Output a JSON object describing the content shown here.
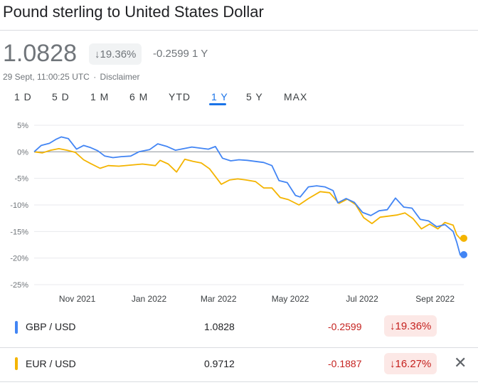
{
  "header": {
    "title": "Pound sterling to United States Dollar",
    "price": "1.0828",
    "pct_change": "19.36%",
    "abs_change": "-0.2599 1 Y",
    "timestamp": "29 Sept, 11:00:25 UTC",
    "separator": "·",
    "disclaimer": "Disclaimer"
  },
  "tabs": [
    {
      "label": "1 D",
      "active": false
    },
    {
      "label": "5 D",
      "active": false
    },
    {
      "label": "1 M",
      "active": false
    },
    {
      "label": "6 M",
      "active": false
    },
    {
      "label": "YTD",
      "active": false
    },
    {
      "label": "1 Y",
      "active": true
    },
    {
      "label": "5 Y",
      "active": false
    },
    {
      "label": "MAX",
      "active": false
    }
  ],
  "colors": {
    "gbp_series": "#4285f4",
    "eur_series": "#f4b400",
    "negative": "#c5221f",
    "active_tab": "#1a73e8"
  },
  "chart_data": {
    "type": "line",
    "title": "",
    "xlabel": "",
    "ylabel": "",
    "ylim": [
      -25,
      5
    ],
    "yticks": [
      "5%",
      "0%",
      "-5%",
      "-10%",
      "-15%",
      "-20%",
      "-25%"
    ],
    "xticks": [
      "Nov 2021",
      "Jan 2022",
      "Mar 2022",
      "May 2022",
      "Jul 2022",
      "Sept 2022"
    ],
    "x_range": [
      "2021-09-29",
      "2022-09-29"
    ],
    "baseline": 0,
    "grid": "horizontal",
    "series": [
      {
        "name": "GBP / USD",
        "color": "#4285f4",
        "points": [
          [
            "2021-09-29",
            0
          ],
          [
            "2021-10-05",
            1.2
          ],
          [
            "2021-10-12",
            1.6
          ],
          [
            "2021-10-18",
            2.4
          ],
          [
            "2021-10-22",
            2.8
          ],
          [
            "2021-10-28",
            2.5
          ],
          [
            "2021-11-04",
            0.5
          ],
          [
            "2021-11-10",
            1.2
          ],
          [
            "2021-11-16",
            0.8
          ],
          [
            "2021-11-22",
            0.2
          ],
          [
            "2021-11-28",
            -0.8
          ],
          [
            "2021-12-05",
            -1.1
          ],
          [
            "2021-12-12",
            -0.9
          ],
          [
            "2021-12-20",
            -0.8
          ],
          [
            "2021-12-27",
            0
          ],
          [
            "2022-01-05",
            0.4
          ],
          [
            "2022-01-12",
            1.5
          ],
          [
            "2022-01-20",
            1.0
          ],
          [
            "2022-01-27",
            0.3
          ],
          [
            "2022-02-03",
            0.6
          ],
          [
            "2022-02-10",
            0.9
          ],
          [
            "2022-02-17",
            0.7
          ],
          [
            "2022-02-24",
            0.5
          ],
          [
            "2022-03-02",
            1.0
          ],
          [
            "2022-03-08",
            -1.2
          ],
          [
            "2022-03-15",
            -1.7
          ],
          [
            "2022-03-22",
            -1.5
          ],
          [
            "2022-03-29",
            -1.6
          ],
          [
            "2022-04-05",
            -1.8
          ],
          [
            "2022-04-12",
            -2.0
          ],
          [
            "2022-04-19",
            -2.6
          ],
          [
            "2022-04-25",
            -5.4
          ],
          [
            "2022-05-02",
            -5.8
          ],
          [
            "2022-05-09",
            -8.2
          ],
          [
            "2022-05-13",
            -8.5
          ],
          [
            "2022-05-20",
            -6.6
          ],
          [
            "2022-05-27",
            -6.4
          ],
          [
            "2022-06-03",
            -6.6
          ],
          [
            "2022-06-10",
            -7.3
          ],
          [
            "2022-06-14",
            -9.6
          ],
          [
            "2022-06-21",
            -8.8
          ],
          [
            "2022-06-28",
            -9.5
          ],
          [
            "2022-07-05",
            -11.4
          ],
          [
            "2022-07-12",
            -12.0
          ],
          [
            "2022-07-19",
            -11.1
          ],
          [
            "2022-07-26",
            -10.9
          ],
          [
            "2022-08-02",
            -8.7
          ],
          [
            "2022-08-09",
            -10.4
          ],
          [
            "2022-08-16",
            -10.6
          ],
          [
            "2022-08-23",
            -12.7
          ],
          [
            "2022-08-30",
            -13.0
          ],
          [
            "2022-09-06",
            -14.1
          ],
          [
            "2022-09-13",
            -13.7
          ],
          [
            "2022-09-20",
            -15.0
          ],
          [
            "2022-09-23",
            -17.0
          ],
          [
            "2022-09-26",
            -19.4
          ],
          [
            "2022-09-29",
            -19.36
          ]
        ]
      },
      {
        "name": "EUR / USD",
        "color": "#f4b400",
        "points": [
          [
            "2021-09-29",
            0
          ],
          [
            "2021-10-06",
            -0.2
          ],
          [
            "2021-10-13",
            0.3
          ],
          [
            "2021-10-20",
            0.6
          ],
          [
            "2021-10-27",
            0.3
          ],
          [
            "2021-11-03",
            -0.1
          ],
          [
            "2021-11-10",
            -1.5
          ],
          [
            "2021-11-16",
            -2.2
          ],
          [
            "2021-11-24",
            -3.1
          ],
          [
            "2021-12-01",
            -2.6
          ],
          [
            "2021-12-10",
            -2.7
          ],
          [
            "2021-12-20",
            -2.5
          ],
          [
            "2021-12-30",
            -2.3
          ],
          [
            "2022-01-10",
            -2.6
          ],
          [
            "2022-01-14",
            -1.6
          ],
          [
            "2022-01-21",
            -2.3
          ],
          [
            "2022-01-28",
            -3.8
          ],
          [
            "2022-02-04",
            -1.4
          ],
          [
            "2022-02-11",
            -1.8
          ],
          [
            "2022-02-18",
            -2.1
          ],
          [
            "2022-02-25",
            -3.2
          ],
          [
            "2022-03-07",
            -6.1
          ],
          [
            "2022-03-14",
            -5.3
          ],
          [
            "2022-03-21",
            -5.1
          ],
          [
            "2022-03-28",
            -5.3
          ],
          [
            "2022-04-05",
            -5.6
          ],
          [
            "2022-04-12",
            -6.8
          ],
          [
            "2022-04-19",
            -6.8
          ],
          [
            "2022-04-26",
            -8.6
          ],
          [
            "2022-05-03",
            -9.0
          ],
          [
            "2022-05-12",
            -10.0
          ],
          [
            "2022-05-20",
            -8.8
          ],
          [
            "2022-05-30",
            -7.5
          ],
          [
            "2022-06-07",
            -7.7
          ],
          [
            "2022-06-15",
            -9.7
          ],
          [
            "2022-06-22",
            -8.9
          ],
          [
            "2022-06-29",
            -9.9
          ],
          [
            "2022-07-06",
            -12.4
          ],
          [
            "2022-07-13",
            -13.5
          ],
          [
            "2022-07-20",
            -12.3
          ],
          [
            "2022-07-27",
            -12.1
          ],
          [
            "2022-08-03",
            -11.9
          ],
          [
            "2022-08-10",
            -11.5
          ],
          [
            "2022-08-17",
            -12.6
          ],
          [
            "2022-08-24",
            -14.5
          ],
          [
            "2022-08-31",
            -13.6
          ],
          [
            "2022-09-07",
            -14.5
          ],
          [
            "2022-09-13",
            -13.3
          ],
          [
            "2022-09-20",
            -13.8
          ],
          [
            "2022-09-23",
            -15.6
          ],
          [
            "2022-09-27",
            -16.6
          ],
          [
            "2022-09-29",
            -16.27
          ]
        ]
      }
    ]
  },
  "rows": [
    {
      "pair": "GBP / USD",
      "value": "1.0828",
      "change": "-0.2599",
      "pct": "19.36%",
      "color": "#4285f4",
      "removable": false
    },
    {
      "pair": "EUR / USD",
      "value": "0.9712",
      "change": "-0.1887",
      "pct": "16.27%",
      "color": "#f4b400",
      "removable": true
    }
  ],
  "icons": {
    "down_arrow": "↓",
    "close": "✕"
  }
}
